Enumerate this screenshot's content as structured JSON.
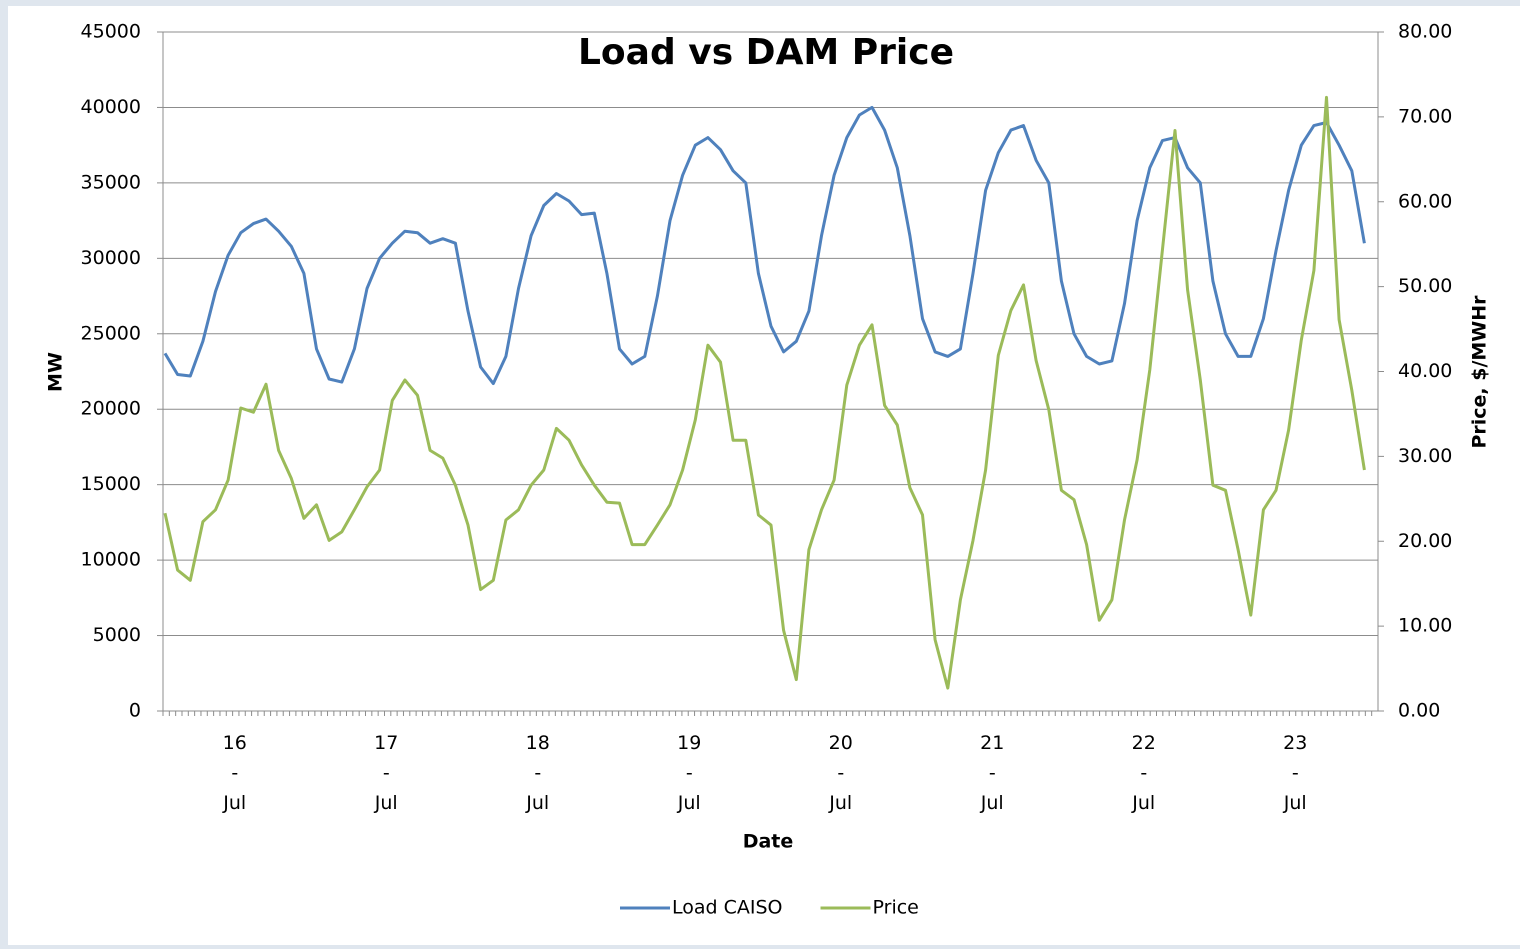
{
  "chart_data": {
    "type": "line",
    "title": "Load vs DAM Price",
    "x_label": "Date",
    "y_label": "MW",
    "y2_label": "Price, $/MWHr",
    "categories": [
      null,
      null,
      null,
      null,
      null,
      null,
      "16-Jul",
      null,
      null,
      null,
      null,
      null,
      null,
      null,
      null,
      null,
      null,
      null,
      "17-Jul",
      null,
      null,
      null,
      null,
      null,
      null,
      null,
      null,
      null,
      null,
      null,
      "18-Jul",
      null,
      null,
      null,
      null,
      null,
      null,
      null,
      null,
      null,
      null,
      null,
      "19-Jul",
      null,
      null,
      null,
      null,
      null,
      null,
      null,
      null,
      null,
      null,
      null,
      "20-Jul",
      null,
      null,
      null,
      null,
      null,
      null,
      null,
      null,
      null,
      null,
      null,
      "21-Jul",
      null,
      null,
      null,
      null,
      null,
      null,
      null,
      null,
      null,
      null,
      null,
      "22-Jul",
      null,
      null,
      null,
      null,
      null,
      null,
      null,
      null,
      null,
      null,
      null,
      "23-Jul",
      null,
      null,
      null,
      null,
      null
    ],
    "ylim": [
      0,
      45000
    ],
    "yticks": [
      0,
      5000,
      10000,
      15000,
      20000,
      25000,
      30000,
      35000,
      40000,
      45000
    ],
    "y2lim": [
      0,
      80
    ],
    "y2ticks": [
      {
        "value": 0,
        "label": "0.00"
      },
      {
        "value": 10,
        "label": "10.00"
      },
      {
        "value": 20,
        "label": "20.00"
      },
      {
        "value": 30,
        "label": "30.00"
      },
      {
        "value": 40,
        "label": "40.00"
      },
      {
        "value": 50,
        "label": "50.00"
      },
      {
        "value": 60,
        "label": "60.00"
      },
      {
        "value": 70,
        "label": "70.00"
      },
      {
        "value": 80,
        "label": "80.00"
      }
    ],
    "grid": true,
    "legend": "bottom",
    "series": [
      {
        "name": "Load CAISO",
        "color": "#4f81bd",
        "values": [
          23700,
          22300,
          22200,
          24500,
          27800,
          30200,
          31700,
          32300,
          32600,
          31800,
          30800,
          29000,
          24000,
          22000,
          21800,
          24000,
          28000,
          30000,
          31000,
          31800,
          31700,
          31000,
          31300,
          31000,
          26500,
          22800,
          21700,
          23500,
          28000,
          31500,
          33500,
          34300,
          33800,
          32900,
          33000,
          29000,
          24000,
          23000,
          23500,
          27500,
          32500,
          35500,
          37500,
          38000,
          37200,
          35800,
          35000,
          29000,
          25500,
          23800,
          24500,
          26500,
          31500,
          35500,
          38000,
          39500,
          40000,
          38500,
          36000,
          31500,
          26000,
          23800,
          23500,
          24000,
          29000,
          34500,
          37000,
          38500,
          38800,
          36500,
          35000,
          28500,
          25000,
          23500,
          23000,
          23200,
          27000,
          32500,
          36000,
          37800,
          38000,
          36000,
          35000,
          28500,
          25000,
          23500,
          23500,
          26000,
          30500,
          34500,
          37500,
          38800,
          39000,
          37500,
          35800,
          31000
        ]
      },
      {
        "name": "Price",
        "color": "#9bbb59",
        "axis": "y2",
        "values": [
          23.3,
          16.6,
          15.4,
          22.3,
          23.7,
          27.2,
          35.7,
          35.2,
          38.5,
          30.7,
          27.4,
          22.7,
          24.3,
          20.1,
          21.1,
          23.7,
          26.4,
          28.4,
          36.6,
          39.0,
          37.2,
          30.7,
          29.8,
          26.6,
          21.9,
          14.3,
          15.4,
          22.5,
          23.7,
          26.6,
          28.4,
          33.3,
          31.9,
          29.0,
          26.6,
          24.6,
          24.5,
          19.6,
          19.6,
          21.9,
          24.3,
          28.4,
          34.3,
          43.1,
          41.1,
          31.9,
          31.9,
          23.1,
          21.9,
          9.5,
          3.7,
          19.0,
          23.7,
          27.2,
          38.4,
          43.1,
          45.5,
          36.0,
          33.7,
          26.3,
          23.1,
          8.4,
          2.7,
          13.1,
          20.1,
          28.4,
          41.9,
          47.2,
          50.2,
          41.3,
          35.5,
          26.0,
          24.9,
          19.6,
          10.7,
          13.1,
          22.5,
          29.6,
          40.2,
          54.3,
          68.4,
          49.6,
          39.0,
          26.6,
          26.0,
          19.0,
          11.3,
          23.7,
          26.0,
          33.1,
          43.7,
          51.9,
          72.3,
          46.1,
          37.8,
          28.4
        ]
      }
    ]
  }
}
